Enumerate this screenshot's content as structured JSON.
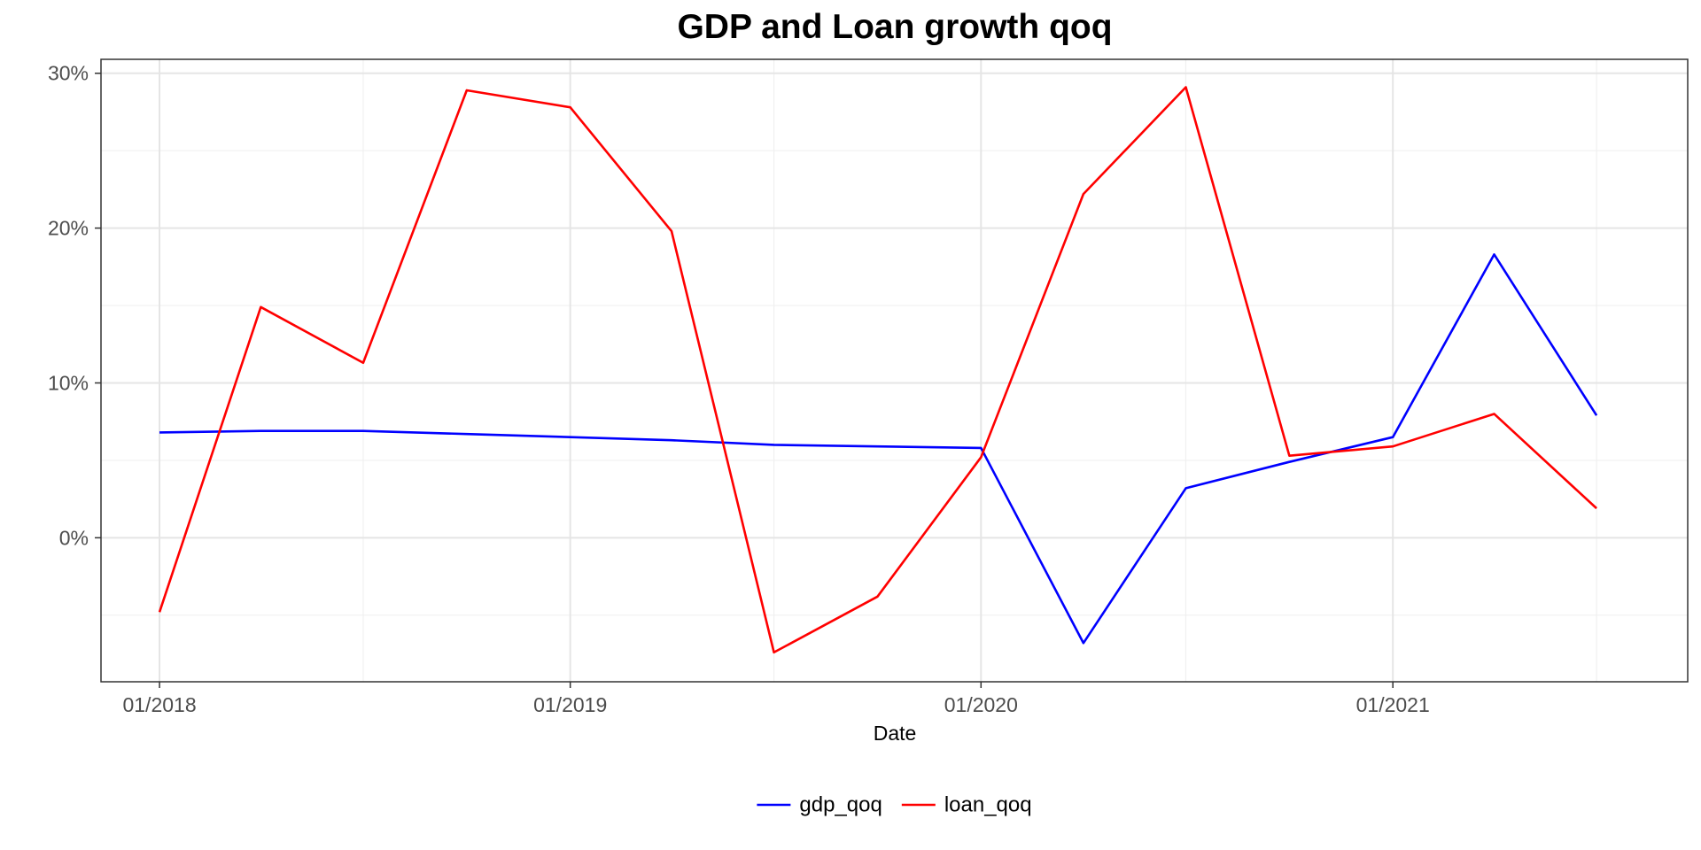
{
  "chart_data": {
    "type": "line",
    "title": "GDP and Loan growth qoq",
    "xlabel": "Date",
    "ylabel": "",
    "x_type": "date",
    "x": [
      "2018-01",
      "2018-04",
      "2018-07",
      "2018-10",
      "2019-01",
      "2019-04",
      "2019-07",
      "2019-10",
      "2020-01",
      "2020-04",
      "2020-07",
      "2020-10",
      "2021-01",
      "2021-04",
      "2021-07"
    ],
    "series": [
      {
        "name": "gdp_qoq",
        "color": "#0000ff",
        "values": [
          6.8,
          6.9,
          6.9,
          6.7,
          6.5,
          6.3,
          6.0,
          5.9,
          5.8,
          -6.8,
          3.2,
          4.9,
          6.5,
          18.3,
          7.9
        ]
      },
      {
        "name": "loan_qoq",
        "color": "#ff0000",
        "values": [
          -4.8,
          14.9,
          11.3,
          28.9,
          27.8,
          19.8,
          -7.4,
          -3.8,
          5.2,
          22.2,
          29.1,
          5.3,
          5.9,
          8.0,
          1.9
        ]
      }
    ],
    "x_ticks": [
      {
        "date": "2018-01",
        "label": "01/2018"
      },
      {
        "date": "2019-01",
        "label": "01/2019"
      },
      {
        "date": "2020-01",
        "label": "01/2020"
      },
      {
        "date": "2021-01",
        "label": "01/2021"
      }
    ],
    "x_minor": [
      "2018-07",
      "2019-07",
      "2020-07",
      "2021-07"
    ],
    "y_ticks": [
      {
        "value": 0,
        "label": "0%"
      },
      {
        "value": 10,
        "label": "10%"
      },
      {
        "value": 20,
        "label": "20%"
      },
      {
        "value": 30,
        "label": "30%"
      }
    ],
    "y_minor": [
      -5,
      5,
      15,
      25
    ],
    "xlim": [
      "2017-11-10",
      "2021-09-20"
    ],
    "ylim": [
      -9.3,
      30.9
    ],
    "grid": true,
    "legend_position": "bottom"
  }
}
